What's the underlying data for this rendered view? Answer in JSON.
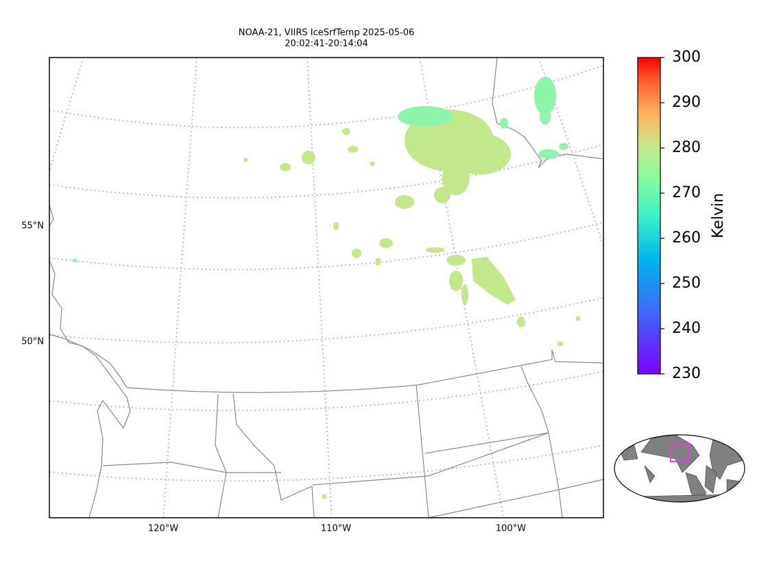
{
  "title": [
    "NOAA-21, VIIRS IceSrfTemp 2025-05-06",
    "20:02:41-20:14:04"
  ],
  "lat_labels": [
    "55°N",
    "50°N"
  ],
  "lon_labels": [
    "120°W",
    "110°W",
    "100°W"
  ],
  "colorbar": {
    "label": "Kelvin",
    "lim": [
      230,
      300
    ],
    "ticks": [
      230,
      240,
      250,
      260,
      270,
      280,
      290,
      300
    ]
  }
}
